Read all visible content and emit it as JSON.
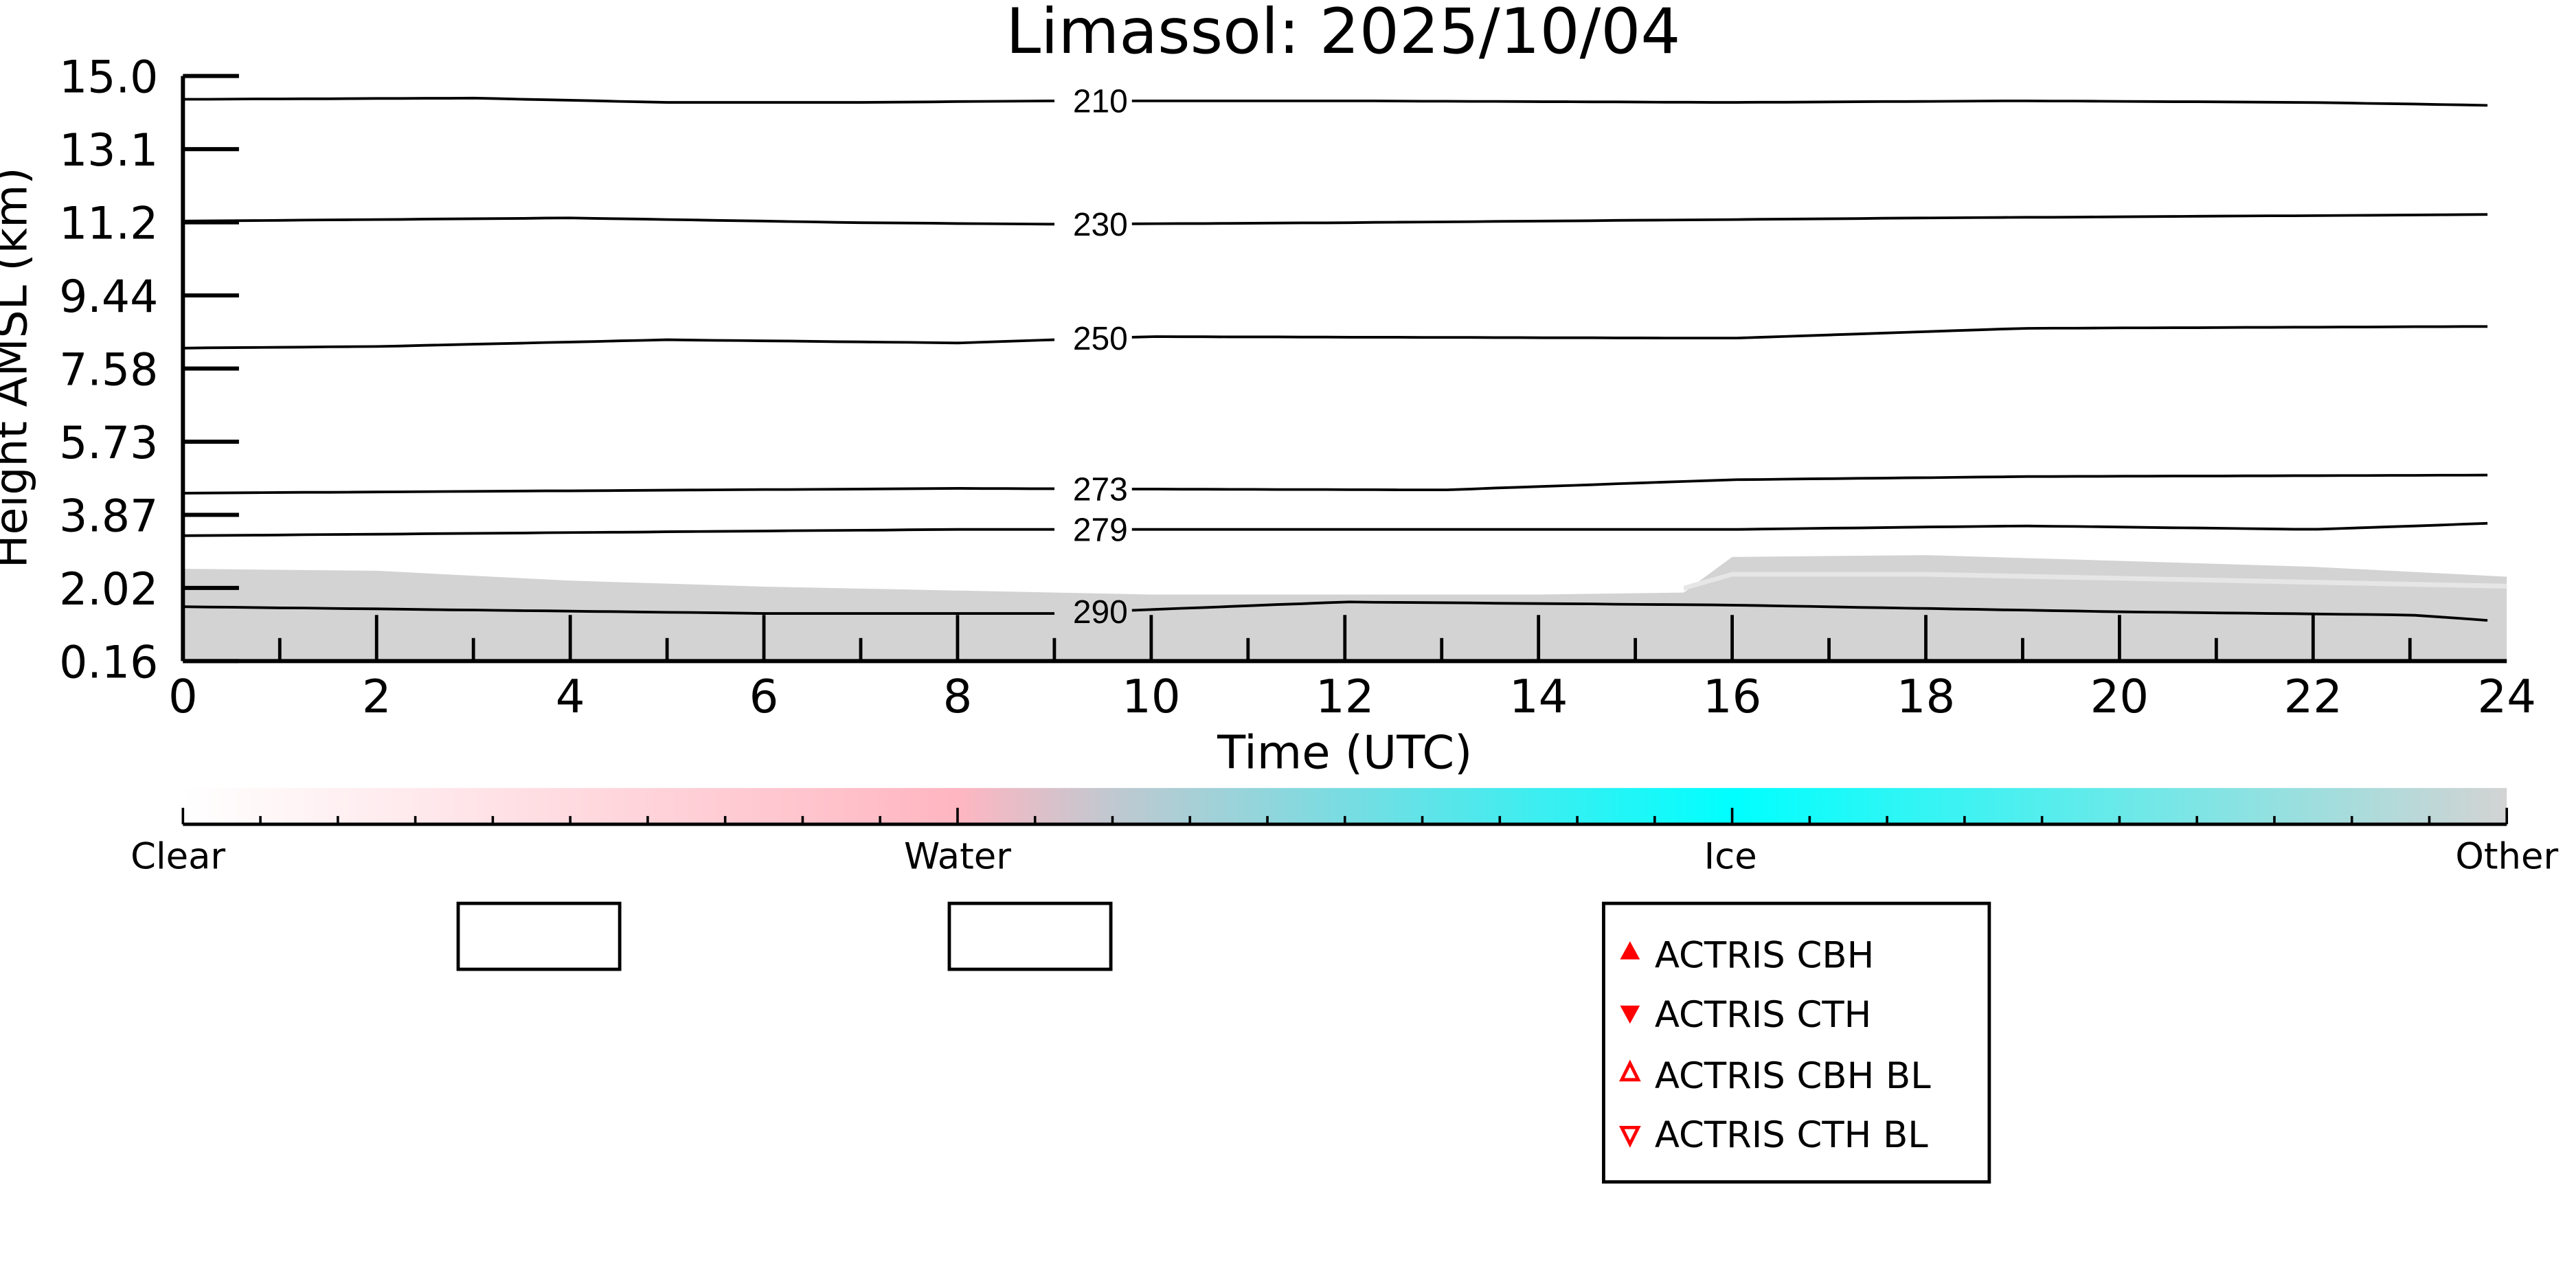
{
  "chart_data": {
    "type": "heatmap",
    "title": "Limassol: 2025/10/04",
    "xlabel": "Time (UTC)",
    "ylabel": "Height AMSL (km)",
    "xlim": [
      0,
      24
    ],
    "ylim": [
      0.16,
      15.0
    ],
    "xticks": [
      "0",
      "2",
      "4",
      "6",
      "8",
      "10",
      "12",
      "14",
      "16",
      "18",
      "20",
      "22",
      "24"
    ],
    "yticks": [
      "0.16",
      "2.02",
      "3.87",
      "5.73",
      "7.58",
      "9.44",
      "11.2",
      "13.1",
      "15.0"
    ],
    "grid": false,
    "contours": [
      {
        "label": "210",
        "points": [
          [
            0,
            14.41
          ],
          [
            3,
            14.44
          ],
          [
            5,
            14.33
          ],
          [
            7,
            14.33
          ],
          [
            9,
            14.37
          ],
          [
            12,
            14.37
          ],
          [
            16,
            14.33
          ],
          [
            19,
            14.37
          ],
          [
            22,
            14.33
          ],
          [
            24,
            14.25
          ]
        ]
      },
      {
        "label": "230",
        "points": [
          [
            0,
            11.32
          ],
          [
            4,
            11.4
          ],
          [
            7,
            11.28
          ],
          [
            9,
            11.24
          ],
          [
            12,
            11.28
          ],
          [
            18,
            11.4
          ],
          [
            24,
            11.49
          ]
        ]
      },
      {
        "label": "250",
        "points": [
          [
            0,
            8.1
          ],
          [
            2,
            8.14
          ],
          [
            5,
            8.31
          ],
          [
            8,
            8.23
          ],
          [
            10,
            8.39
          ],
          [
            16,
            8.35
          ],
          [
            19,
            8.6
          ],
          [
            24,
            8.65
          ]
        ]
      },
      {
        "label": "273",
        "points": [
          [
            0,
            4.42
          ],
          [
            8,
            4.54
          ],
          [
            13,
            4.5
          ],
          [
            16,
            4.76
          ],
          [
            19,
            4.84
          ],
          [
            24,
            4.88
          ]
        ]
      },
      {
        "label": "279",
        "points": [
          [
            0,
            3.34
          ],
          [
            8,
            3.5
          ],
          [
            16,
            3.5
          ],
          [
            19,
            3.59
          ],
          [
            22,
            3.5
          ],
          [
            24,
            3.67
          ]
        ]
      },
      {
        "label": "290",
        "points": [
          [
            0,
            1.54
          ],
          [
            6,
            1.37
          ],
          [
            9,
            1.37
          ],
          [
            12,
            1.66
          ],
          [
            16,
            1.58
          ],
          [
            20,
            1.41
          ],
          [
            23,
            1.33
          ],
          [
            24,
            1.16
          ]
        ]
      }
    ],
    "contour_label_time": 10,
    "classification_area": {
      "class": "Other",
      "top_height_km": [
        [
          0,
          2.5
        ],
        [
          2,
          2.45
        ],
        [
          4,
          2.2
        ],
        [
          6,
          2.05
        ],
        [
          8,
          1.95
        ],
        [
          10,
          1.85
        ],
        [
          12,
          1.85
        ],
        [
          14,
          1.85
        ],
        [
          15.5,
          1.9
        ],
        [
          16,
          2.8
        ],
        [
          18,
          2.85
        ],
        [
          20,
          2.7
        ],
        [
          22,
          2.55
        ],
        [
          24,
          2.3
        ]
      ]
    },
    "colorbar": {
      "labels": [
        "Clear",
        "Water",
        "Ice",
        "Other"
      ],
      "colors": [
        "#ffffff",
        "#ffb6c1",
        "#00ffff",
        "#d3d3d3"
      ]
    },
    "legend": {
      "placement": "bottom-right",
      "entries": [
        {
          "label": "ACTRIS CBH",
          "marker": "triangle-up-filled"
        },
        {
          "label": "ACTRIS CTH",
          "marker": "triangle-down-filled"
        },
        {
          "label": "ACTRIS CBH BL",
          "marker": "triangle-up-open"
        },
        {
          "label": "ACTRIS CTH BL",
          "marker": "triangle-down-open"
        }
      ],
      "marker_color": "#ff0000"
    }
  }
}
